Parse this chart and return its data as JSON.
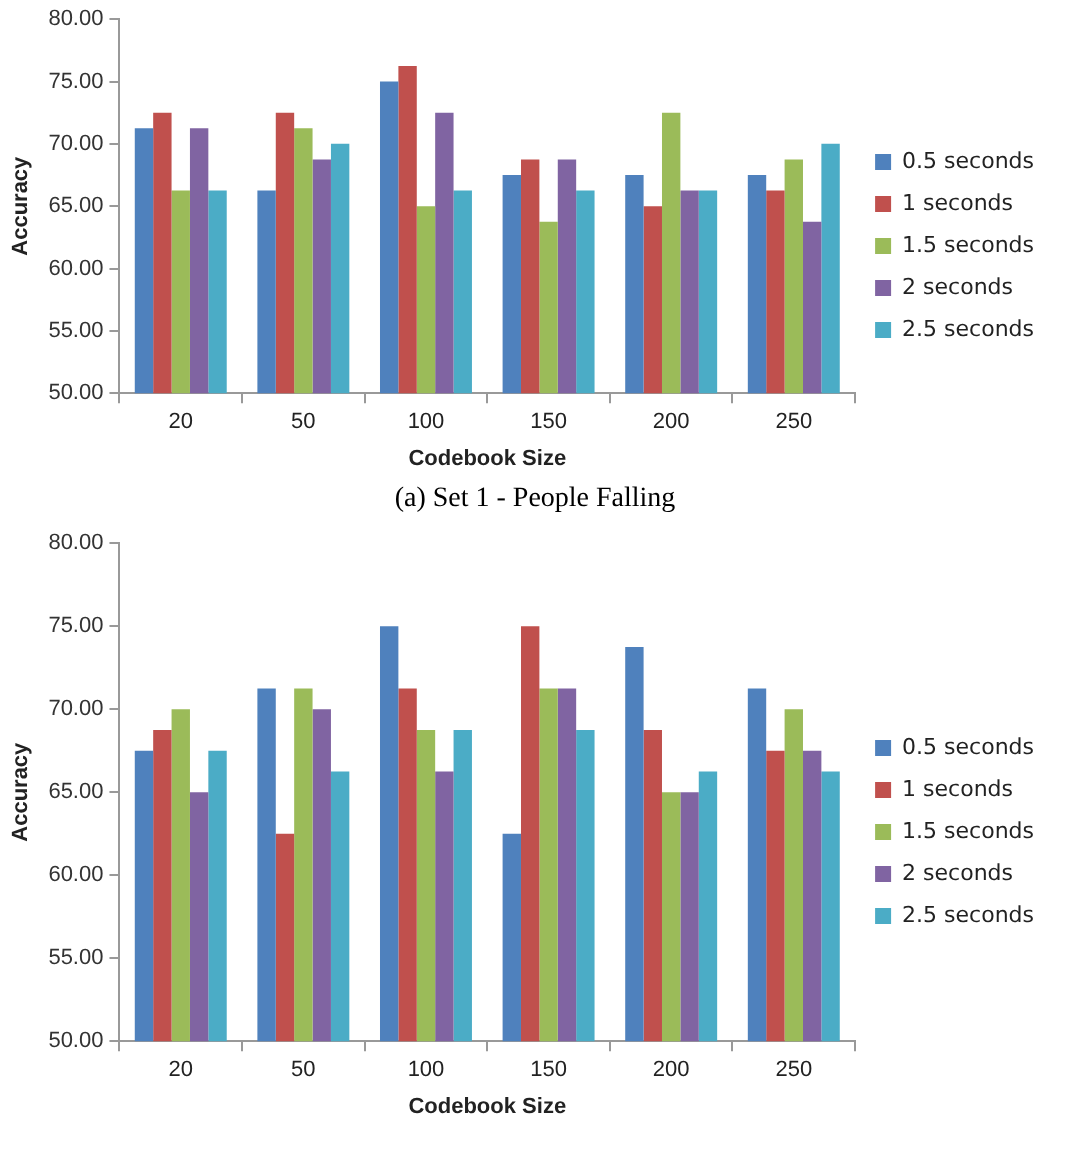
{
  "chart_data": [
    {
      "type": "bar",
      "ylabel": "Accuracy",
      "xlabel": "Codebook Size",
      "categories": [
        "20",
        "50",
        "100",
        "150",
        "200",
        "250"
      ],
      "series": [
        {
          "name": "0.5 seconds",
          "color": "#4f81bd",
          "values": [
            71.25,
            66.25,
            75,
            67.5,
            67.5,
            67.5
          ]
        },
        {
          "name": "1 seconds",
          "color": "#c0504d",
          "values": [
            72.5,
            72.5,
            76.25,
            68.75,
            65,
            66.25
          ]
        },
        {
          "name": "1.5 seconds",
          "color": "#9bbb59",
          "values": [
            66.25,
            71.25,
            65,
            63.75,
            72.5,
            68.75
          ]
        },
        {
          "name": "2 seconds",
          "color": "#8064a2",
          "values": [
            71.25,
            68.75,
            72.5,
            68.75,
            66.25,
            63.75
          ]
        },
        {
          "name": "2.5 seconds",
          "color": "#4bacc6",
          "values": [
            66.25,
            70,
            66.25,
            66.25,
            66.25,
            70
          ]
        }
      ],
      "ylim": [
        50,
        80
      ],
      "yticks": [
        {
          "value": 50,
          "label": "50.00"
        },
        {
          "value": 55,
          "label": "55.00"
        },
        {
          "value": 60,
          "label": "60.00"
        },
        {
          "value": 65,
          "label": "65.00"
        },
        {
          "value": 70,
          "label": "70.00"
        },
        {
          "value": 75,
          "label": "75.00"
        },
        {
          "value": 80,
          "label": "80.00"
        }
      ],
      "legend": "right",
      "annotations": [
        "(a) Set 1 - People Falling"
      ]
    },
    {
      "type": "bar",
      "ylabel": "Accuracy",
      "xlabel": "Codebook Size",
      "categories": [
        "20",
        "50",
        "100",
        "150",
        "200",
        "250"
      ],
      "series": [
        {
          "name": "0.5 seconds",
          "color": "#4f81bd",
          "values": [
            67.5,
            71.25,
            75,
            62.5,
            73.75,
            71.25
          ]
        },
        {
          "name": "1 seconds",
          "color": "#c0504d",
          "values": [
            68.75,
            62.5,
            71.25,
            75,
            68.75,
            67.5
          ]
        },
        {
          "name": "1.5 seconds",
          "color": "#9bbb59",
          "values": [
            70,
            71.25,
            68.75,
            71.25,
            65,
            70
          ]
        },
        {
          "name": "2 seconds",
          "color": "#8064a2",
          "values": [
            65,
            70,
            66.25,
            71.25,
            65,
            67.5
          ]
        },
        {
          "name": "2.5 seconds",
          "color": "#4bacc6",
          "values": [
            67.5,
            66.25,
            68.75,
            68.75,
            66.25,
            66.25
          ]
        }
      ],
      "ylim": [
        50,
        80
      ],
      "yticks": [
        {
          "value": 50,
          "label": "50.00"
        },
        {
          "value": 55,
          "label": "55.00"
        },
        {
          "value": 60,
          "label": "60.00"
        },
        {
          "value": 65,
          "label": "65.00"
        },
        {
          "value": 70,
          "label": "70.00"
        },
        {
          "value": 75,
          "label": "75.00"
        },
        {
          "value": 80,
          "label": "80.00"
        }
      ],
      "legend": "right"
    }
  ]
}
